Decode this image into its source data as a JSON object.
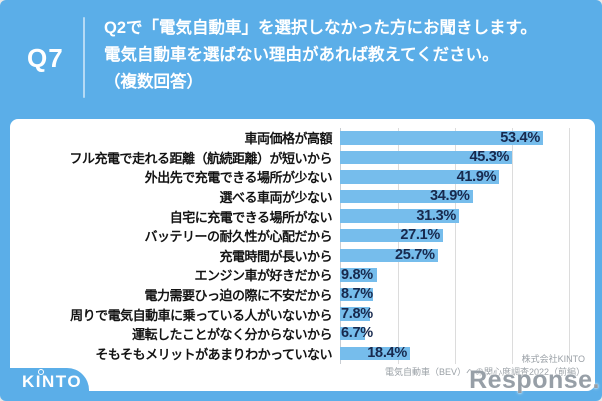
{
  "header": {
    "question_number": "Q7",
    "line1": "Q2で「電気自動車」を選択しなかった方にお聞きします。",
    "line2": "電気自動車を選ばない理由があれば教えてください。",
    "line3": "（複数回答）"
  },
  "chart_data": {
    "type": "bar",
    "orientation": "horizontal",
    "title": "電気自動車を選ばない理由（複数回答）",
    "categories": [
      "車両価格が高額",
      "フル充電で走れる距離（航続距離）が短いから",
      "外出先で充電できる場所が少ない",
      "選べる車両が少ない",
      "自宅に充電できる場所がない",
      "バッテリーの耐久性が心配だから",
      "充電時間が長いから",
      "エンジン車が好きだから",
      "電力需要ひっ迫の際に不安だから",
      "周りで電気自動車に乗っている人がいないから",
      "運転したことがなく分からないから",
      "そもそもメリットがあまりわかっていない"
    ],
    "values": [
      53.4,
      45.3,
      41.9,
      34.9,
      31.3,
      27.1,
      25.7,
      9.8,
      8.7,
      7.8,
      6.7,
      18.4
    ],
    "unit": "%",
    "xlim": [
      0,
      60
    ],
    "gridline_interval": 15,
    "grid": true,
    "legend": false,
    "bar_color": "#76BDEC",
    "value_label_color": "#17294E"
  },
  "footer": {
    "source_line1": "株式会社KINTO",
    "source_line2": "電気自動車（BEV）への関心度調査2022（前編）",
    "logo_text": "KINTO",
    "watermark_text": "Response."
  },
  "colors": {
    "background": "#5BAEE8",
    "card": "#FFFFFF",
    "header_text": "#FFFFFF",
    "category_text": "#141414",
    "gridline": "#DCDCDC",
    "source_text": "#9AA0A6"
  }
}
